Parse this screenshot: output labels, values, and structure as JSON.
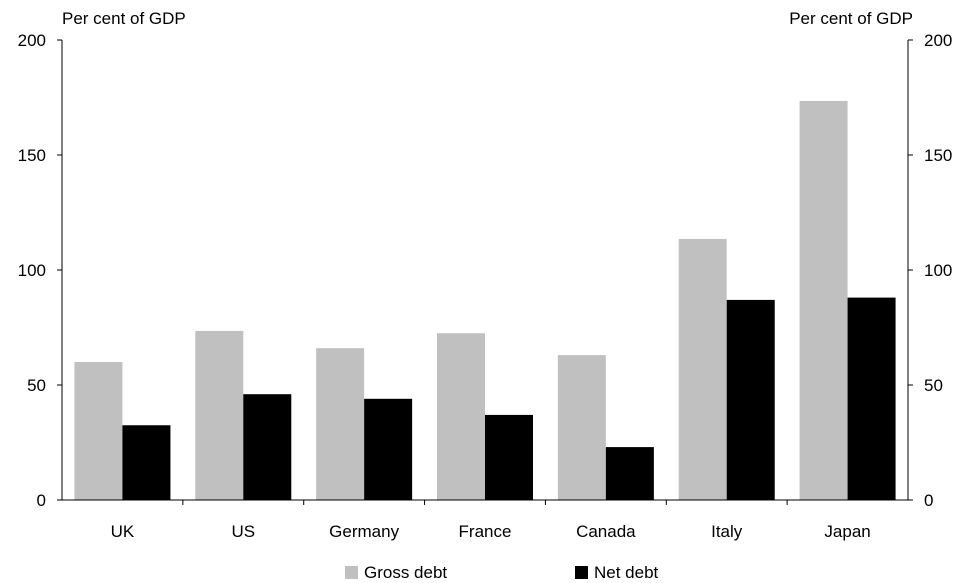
{
  "chart_data": {
    "type": "bar",
    "title": "",
    "ylabel_left": "Per cent of GDP",
    "ylabel_right": "Per cent of GDP",
    "categories": [
      "UK",
      "US",
      "Germany",
      "France",
      "Canada",
      "Italy",
      "Japan"
    ],
    "series": [
      {
        "name": "Gross debt",
        "color": "#c0c0c0",
        "values": [
          60,
          73.5,
          66,
          72.5,
          63,
          113.5,
          173.5
        ]
      },
      {
        "name": "Net debt",
        "color": "#000000",
        "values": [
          32.5,
          46,
          44,
          37,
          23,
          87,
          88
        ]
      }
    ],
    "ylim": [
      0,
      200
    ],
    "yticks": [
      0,
      50,
      100,
      150,
      200
    ],
    "grid": false,
    "legend": "bottom"
  }
}
